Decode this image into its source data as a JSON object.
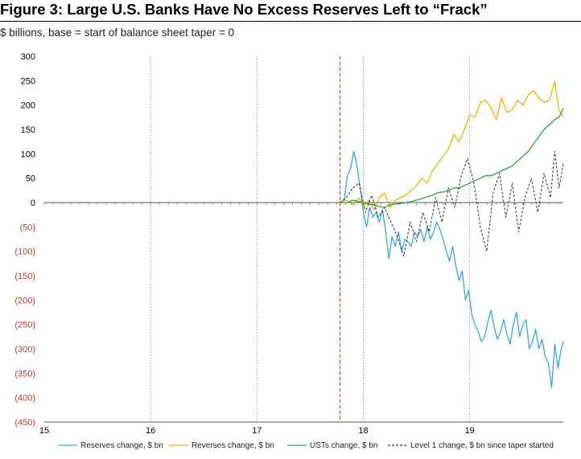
{
  "chart_data": {
    "type": "line",
    "title": "Figure 3: Large U.S. Banks Have No Excess Reserves Left to “Frack”",
    "subtitle": "$ billions, base = start of balance sheet taper = 0",
    "xlabel": "",
    "ylabel": "",
    "xlim": [
      15.0,
      19.88
    ],
    "ylim": [
      -450,
      300
    ],
    "x_tick_values": [
      15,
      16,
      17,
      18,
      19
    ],
    "x_tick_labels": [
      "15",
      "16",
      "17",
      "18",
      "19"
    ],
    "y_ticks": [
      {
        "value": 300,
        "label": "300",
        "negative": false
      },
      {
        "value": 250,
        "label": "250",
        "negative": false
      },
      {
        "value": 200,
        "label": "200",
        "negative": false
      },
      {
        "value": 150,
        "label": "150",
        "negative": false
      },
      {
        "value": 100,
        "label": "100",
        "negative": false
      },
      {
        "value": 50,
        "label": "50",
        "negative": false
      },
      {
        "value": 0,
        "label": "0",
        "negative": false
      },
      {
        "value": -50,
        "label": "(50)",
        "negative": true
      },
      {
        "value": -100,
        "label": "(100)",
        "negative": true
      },
      {
        "value": -150,
        "label": "(150)",
        "negative": true
      },
      {
        "value": -200,
        "label": "(200)",
        "negative": true
      },
      {
        "value": -250,
        "label": "(250)",
        "negative": true
      },
      {
        "value": -300,
        "label": "(300)",
        "negative": true
      },
      {
        "value": -350,
        "label": "(350)",
        "negative": true
      },
      {
        "value": -400,
        "label": "(400)",
        "negative": true
      },
      {
        "value": -450,
        "label": "(450)",
        "negative": true
      }
    ],
    "vertical_gridlines": [
      16,
      17,
      18,
      19
    ],
    "taper_start_x": 17.78,
    "zero_line": 0,
    "legend_position": "bottom",
    "colors": {
      "reserves": "#3aa6dd",
      "reverses": "#f0b400",
      "usts": "#2aa24a",
      "level1": "#333333",
      "taper_line": "#d93030",
      "negative_tick": "#c0392b",
      "positive_tick": "#000000",
      "grid": "#888888",
      "zero_axis": "#555555"
    },
    "series": [
      {
        "key": "reserves",
        "name": "Reserves change, $ bn",
        "dash": "solid",
        "x": [
          17.78,
          17.82,
          17.85,
          17.88,
          17.91,
          17.94,
          17.97,
          18.0,
          18.03,
          18.06,
          18.09,
          18.12,
          18.15,
          18.18,
          18.21,
          18.24,
          18.27,
          18.3,
          18.33,
          18.36,
          18.39,
          18.42,
          18.45,
          18.48,
          18.51,
          18.54,
          18.57,
          18.6,
          18.63,
          18.66,
          18.69,
          18.72,
          18.75,
          18.78,
          18.81,
          18.84,
          18.87,
          18.9,
          18.93,
          18.96,
          18.99,
          19.02,
          19.05,
          19.08,
          19.11,
          19.14,
          19.17,
          19.2,
          19.23,
          19.26,
          19.29,
          19.32,
          19.35,
          19.38,
          19.41,
          19.44,
          19.47,
          19.5,
          19.53,
          19.56,
          19.59,
          19.62,
          19.65,
          19.68,
          19.71,
          19.74,
          19.77,
          19.8,
          19.83,
          19.86,
          19.88
        ],
        "values": [
          0,
          5,
          55,
          70,
          105,
          75,
          30,
          -20,
          -50,
          -10,
          -30,
          -20,
          -40,
          -15,
          -60,
          -115,
          -70,
          -90,
          -60,
          -100,
          -75,
          -80,
          -90,
          -60,
          -70,
          -55,
          -80,
          -50,
          -75,
          -60,
          -40,
          -55,
          -75,
          -100,
          -120,
          -90,
          -130,
          -160,
          -140,
          -200,
          -180,
          -230,
          -250,
          -265,
          -285,
          -275,
          -245,
          -220,
          -255,
          -280,
          -265,
          -240,
          -270,
          -290,
          -250,
          -225,
          -275,
          -250,
          -240,
          -300,
          -285,
          -260,
          -300,
          -280,
          -315,
          -330,
          -380,
          -290,
          -340,
          -300,
          -285
        ]
      },
      {
        "key": "reverses",
        "name": "Reverses change, $ bn",
        "dash": "solid",
        "x": [
          17.78,
          17.84,
          17.9,
          17.96,
          18.0,
          18.05,
          18.1,
          18.15,
          18.2,
          18.25,
          18.3,
          18.35,
          18.4,
          18.45,
          18.5,
          18.55,
          18.6,
          18.65,
          18.7,
          18.75,
          18.8,
          18.85,
          18.9,
          18.95,
          19.0,
          19.05,
          19.1,
          19.15,
          19.2,
          19.25,
          19.3,
          19.35,
          19.4,
          19.45,
          19.5,
          19.55,
          19.6,
          19.65,
          19.7,
          19.75,
          19.8,
          19.84,
          19.88
        ],
        "values": [
          0,
          5,
          -5,
          10,
          -10,
          5,
          -15,
          10,
          20,
          -10,
          5,
          10,
          15,
          25,
          35,
          50,
          40,
          65,
          80,
          95,
          110,
          140,
          125,
          150,
          180,
          175,
          205,
          210,
          195,
          170,
          215,
          185,
          190,
          210,
          200,
          220,
          230,
          215,
          205,
          210,
          248,
          190,
          175
        ]
      },
      {
        "key": "usts",
        "name": "USTs change, $ bn",
        "dash": "solid",
        "x": [
          17.78,
          17.85,
          17.9,
          17.95,
          18.0,
          18.05,
          18.1,
          18.15,
          18.2,
          18.25,
          18.3,
          18.35,
          18.4,
          18.45,
          18.5,
          18.55,
          18.6,
          18.65,
          18.7,
          18.75,
          18.8,
          18.85,
          18.9,
          18.95,
          19.0,
          19.05,
          19.1,
          19.15,
          19.2,
          19.25,
          19.3,
          19.35,
          19.4,
          19.45,
          19.5,
          19.55,
          19.6,
          19.65,
          19.7,
          19.75,
          19.8,
          19.84,
          19.88
        ],
        "values": [
          0,
          0,
          5,
          2,
          0,
          -3,
          -5,
          -8,
          -10,
          -5,
          -3,
          -2,
          0,
          2,
          5,
          8,
          12,
          15,
          20,
          22,
          25,
          30,
          30,
          35,
          40,
          45,
          50,
          55,
          55,
          60,
          65,
          70,
          75,
          85,
          95,
          105,
          120,
          135,
          150,
          160,
          170,
          175,
          193
        ]
      },
      {
        "key": "level1",
        "name": "Level 1 change, $ bn since taper started",
        "dash": "dashed",
        "x": [
          17.78,
          17.84,
          17.9,
          17.96,
          18.02,
          18.08,
          18.14,
          18.2,
          18.26,
          18.32,
          18.38,
          18.44,
          18.5,
          18.56,
          18.62,
          18.68,
          18.74,
          18.8,
          18.86,
          18.92,
          18.98,
          19.04,
          19.1,
          19.16,
          19.22,
          19.28,
          19.34,
          19.4,
          19.46,
          19.52,
          19.58,
          19.64,
          19.7,
          19.76,
          19.8,
          19.84,
          19.88
        ],
        "values": [
          0,
          10,
          30,
          40,
          -20,
          15,
          -30,
          -10,
          -40,
          -70,
          -110,
          -40,
          -80,
          -20,
          -60,
          10,
          -40,
          30,
          -10,
          55,
          90,
          40,
          -50,
          -100,
          20,
          60,
          -30,
          40,
          -60,
          10,
          50,
          -20,
          60,
          10,
          105,
          30,
          80
        ]
      }
    ],
    "legend": [
      {
        "key": "reserves",
        "label": "Reserves change, $ bn"
      },
      {
        "key": "reverses",
        "label": "Reverses change, $ bn"
      },
      {
        "key": "usts",
        "label": "USTs change, $ bn"
      },
      {
        "key": "level1",
        "label": "Level 1 change, $ bn since taper started"
      }
    ]
  }
}
